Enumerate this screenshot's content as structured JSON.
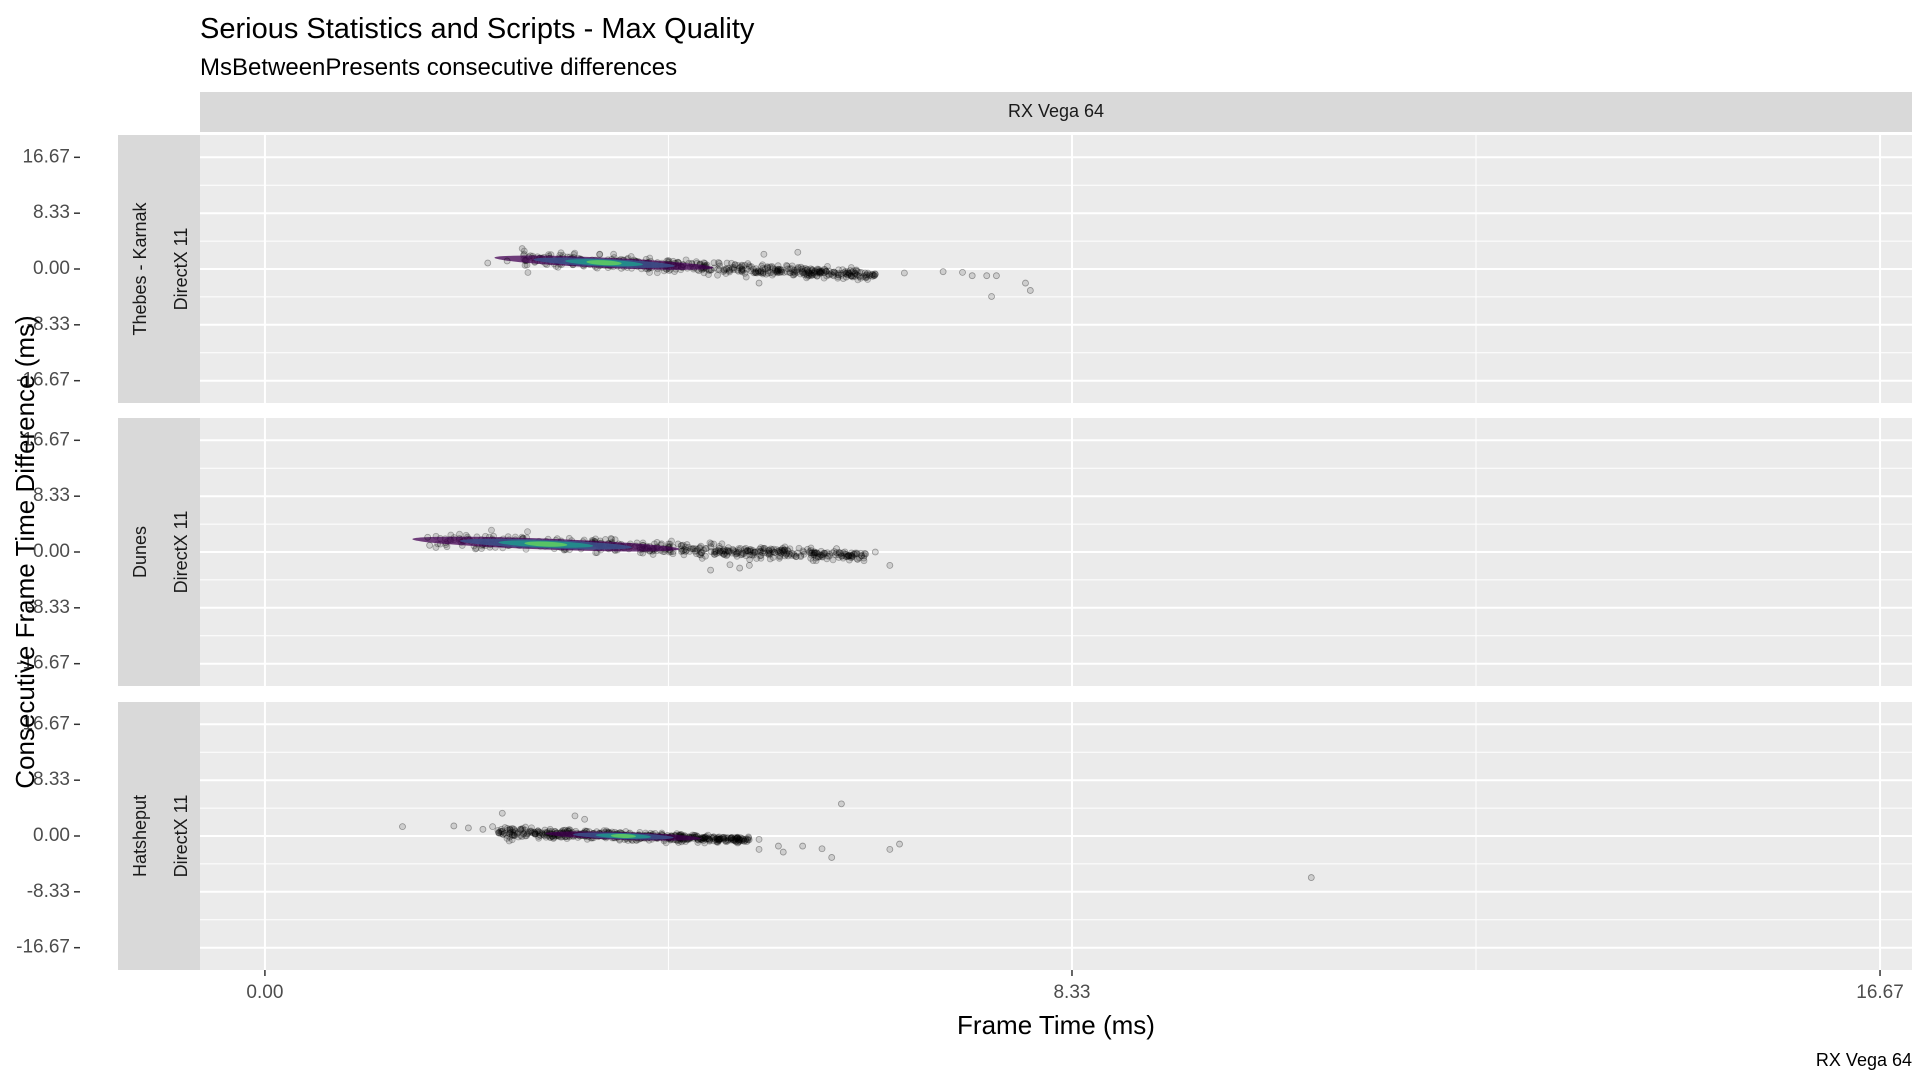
{
  "chart_data": {
    "type": "scatter",
    "title": "Serious Statistics and Scripts - Max Quality",
    "subtitle": "MsBetweenPresents consecutive differences",
    "caption": "RX Vega 64",
    "column_strip": "RX Vega 64",
    "xlabel": "Frame Time (ms)",
    "ylabel": "Consecutive Frame Time Difference (ms)",
    "xlim": [
      -0.67,
      17.0
    ],
    "ylim": [
      -20.0,
      20.0
    ],
    "x_ticks": [
      "0.00",
      "8.33",
      "16.67"
    ],
    "x_tick_values": [
      0.0,
      8.33,
      16.67
    ],
    "y_ticks": [
      "16.67",
      "8.33",
      "0.00",
      "-8.33",
      "-16.67"
    ],
    "y_tick_values": [
      16.67,
      8.33,
      0.0,
      -8.33,
      -16.67
    ],
    "grid": true,
    "colors": {
      "panel_bg": "#ebebeb",
      "strip_bg": "#d9d9d9",
      "grid": "#ffffff",
      "points": "#000000",
      "density": [
        "#440154",
        "#3b528b",
        "#21918c",
        "#5ec962",
        "#fde725"
      ]
    },
    "panels": [
      {
        "strip_labels": [
          "Thebes - Karnak",
          "DirectX 11"
        ],
        "core": {
          "x_range": [
            2.65,
            6.3
          ],
          "y_start": 1.5,
          "y_end": -0.9,
          "thickness": 2.6,
          "peak": 3.5
        },
        "outliers": [
          {
            "x": 7.0,
            "y": -0.4
          },
          {
            "x": 6.6,
            "y": -0.6
          },
          {
            "x": 6.3,
            "y": -0.8
          },
          {
            "x": 7.2,
            "y": -0.5
          },
          {
            "x": 7.3,
            "y": -1.0
          },
          {
            "x": 7.45,
            "y": -1.0
          },
          {
            "x": 7.55,
            "y": -1.0
          },
          {
            "x": 5.5,
            "y": 2.5
          },
          {
            "x": 5.15,
            "y": 2.2
          },
          {
            "x": 6.0,
            "y": -1.2
          },
          {
            "x": 7.5,
            "y": -4.1
          },
          {
            "x": 7.85,
            "y": -2.1
          },
          {
            "x": 7.9,
            "y": -3.2
          },
          {
            "x": 2.3,
            "y": 0.9
          },
          {
            "x": 2.5,
            "y": 1.2
          },
          {
            "x": 5.1,
            "y": -2.1
          }
        ]
      },
      {
        "strip_labels": [
          "Dunes",
          "DirectX 11"
        ],
        "core": {
          "x_range": [
            1.75,
            6.2
          ],
          "y_start": 1.8,
          "y_end": -0.6,
          "thickness": 2.8,
          "peak": 2.9
        },
        "outliers": [
          {
            "x": 1.7,
            "y": 1.0
          },
          {
            "x": 1.68,
            "y": 2.2
          },
          {
            "x": 6.2,
            "y": -0.3
          },
          {
            "x": 6.3,
            "y": 0.0
          },
          {
            "x": 6.45,
            "y": -2.0
          },
          {
            "x": 5.0,
            "y": -2.0
          },
          {
            "x": 4.6,
            "y": -2.7
          },
          {
            "x": 4.8,
            "y": -1.9
          },
          {
            "x": 5.9,
            "y": 0.5
          },
          {
            "x": 4.9,
            "y": -2.4
          }
        ]
      },
      {
        "strip_labels": [
          "Hatsheput",
          "DirectX 11"
        ],
        "core": {
          "x_range": [
            2.4,
            5.0
          ],
          "y_start": 0.6,
          "y_end": -0.6,
          "thickness": 1.8,
          "peak": 3.7
        },
        "outliers": [
          {
            "x": 1.42,
            "y": 1.4
          },
          {
            "x": 1.95,
            "y": 1.5
          },
          {
            "x": 2.1,
            "y": 1.2
          },
          {
            "x": 2.25,
            "y": 1.0
          },
          {
            "x": 2.35,
            "y": 1.4
          },
          {
            "x": 2.45,
            "y": 0.7
          },
          {
            "x": 2.45,
            "y": 3.4
          },
          {
            "x": 3.2,
            "y": 3.0
          },
          {
            "x": 3.3,
            "y": 2.5
          },
          {
            "x": 5.1,
            "y": -0.5
          },
          {
            "x": 5.3,
            "y": -1.5
          },
          {
            "x": 5.1,
            "y": -2.0
          },
          {
            "x": 5.55,
            "y": -1.5
          },
          {
            "x": 5.35,
            "y": -2.4
          },
          {
            "x": 5.85,
            "y": -3.2
          },
          {
            "x": 5.75,
            "y": -1.9
          },
          {
            "x": 5.95,
            "y": 4.8
          },
          {
            "x": 6.45,
            "y": -2.0
          },
          {
            "x": 6.55,
            "y": -1.2
          },
          {
            "x": 10.8,
            "y": -6.2
          }
        ]
      }
    ]
  }
}
